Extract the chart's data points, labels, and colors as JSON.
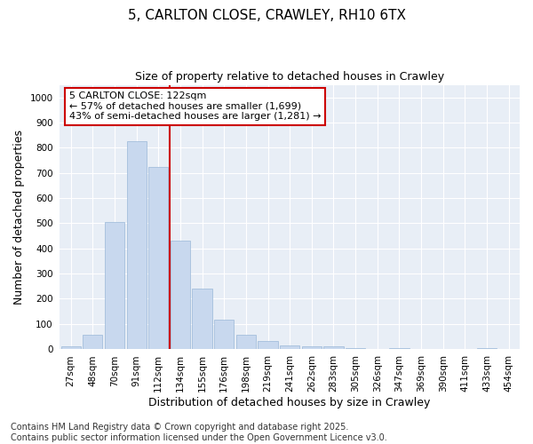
{
  "title": "5, CARLTON CLOSE, CRAWLEY, RH10 6TX",
  "subtitle": "Size of property relative to detached houses in Crawley",
  "xlabel": "Distribution of detached houses by size in Crawley",
  "ylabel": "Number of detached properties",
  "categories": [
    "27sqm",
    "48sqm",
    "70sqm",
    "91sqm",
    "112sqm",
    "134sqm",
    "155sqm",
    "176sqm",
    "198sqm",
    "219sqm",
    "241sqm",
    "262sqm",
    "283sqm",
    "305sqm",
    "326sqm",
    "347sqm",
    "369sqm",
    "390sqm",
    "411sqm",
    "433sqm",
    "454sqm"
  ],
  "values": [
    10,
    55,
    505,
    825,
    725,
    430,
    240,
    118,
    57,
    33,
    15,
    12,
    10,
    5,
    0,
    5,
    0,
    0,
    0,
    5,
    0
  ],
  "bar_color": "#c8d8ee",
  "bar_edgecolor": "#9ab8d8",
  "vline_x": 4.5,
  "vline_color": "#cc0000",
  "annotation_text": "5 CARLTON CLOSE: 122sqm\n← 57% of detached houses are smaller (1,699)\n43% of semi-detached houses are larger (1,281) →",
  "annotation_box_facecolor": "#ffffff",
  "annotation_box_edgecolor": "#cc0000",
  "ylim": [
    0,
    1050
  ],
  "yticks": [
    0,
    100,
    200,
    300,
    400,
    500,
    600,
    700,
    800,
    900,
    1000
  ],
  "plot_bg_color": "#e8eef6",
  "fig_bg_color": "#ffffff",
  "footer": "Contains HM Land Registry data © Crown copyright and database right 2025.\nContains public sector information licensed under the Open Government Licence v3.0.",
  "title_fontsize": 11,
  "subtitle_fontsize": 9,
  "ylabel_fontsize": 9,
  "xlabel_fontsize": 9,
  "tick_fontsize": 7.5,
  "annotation_fontsize": 8,
  "footer_fontsize": 7
}
